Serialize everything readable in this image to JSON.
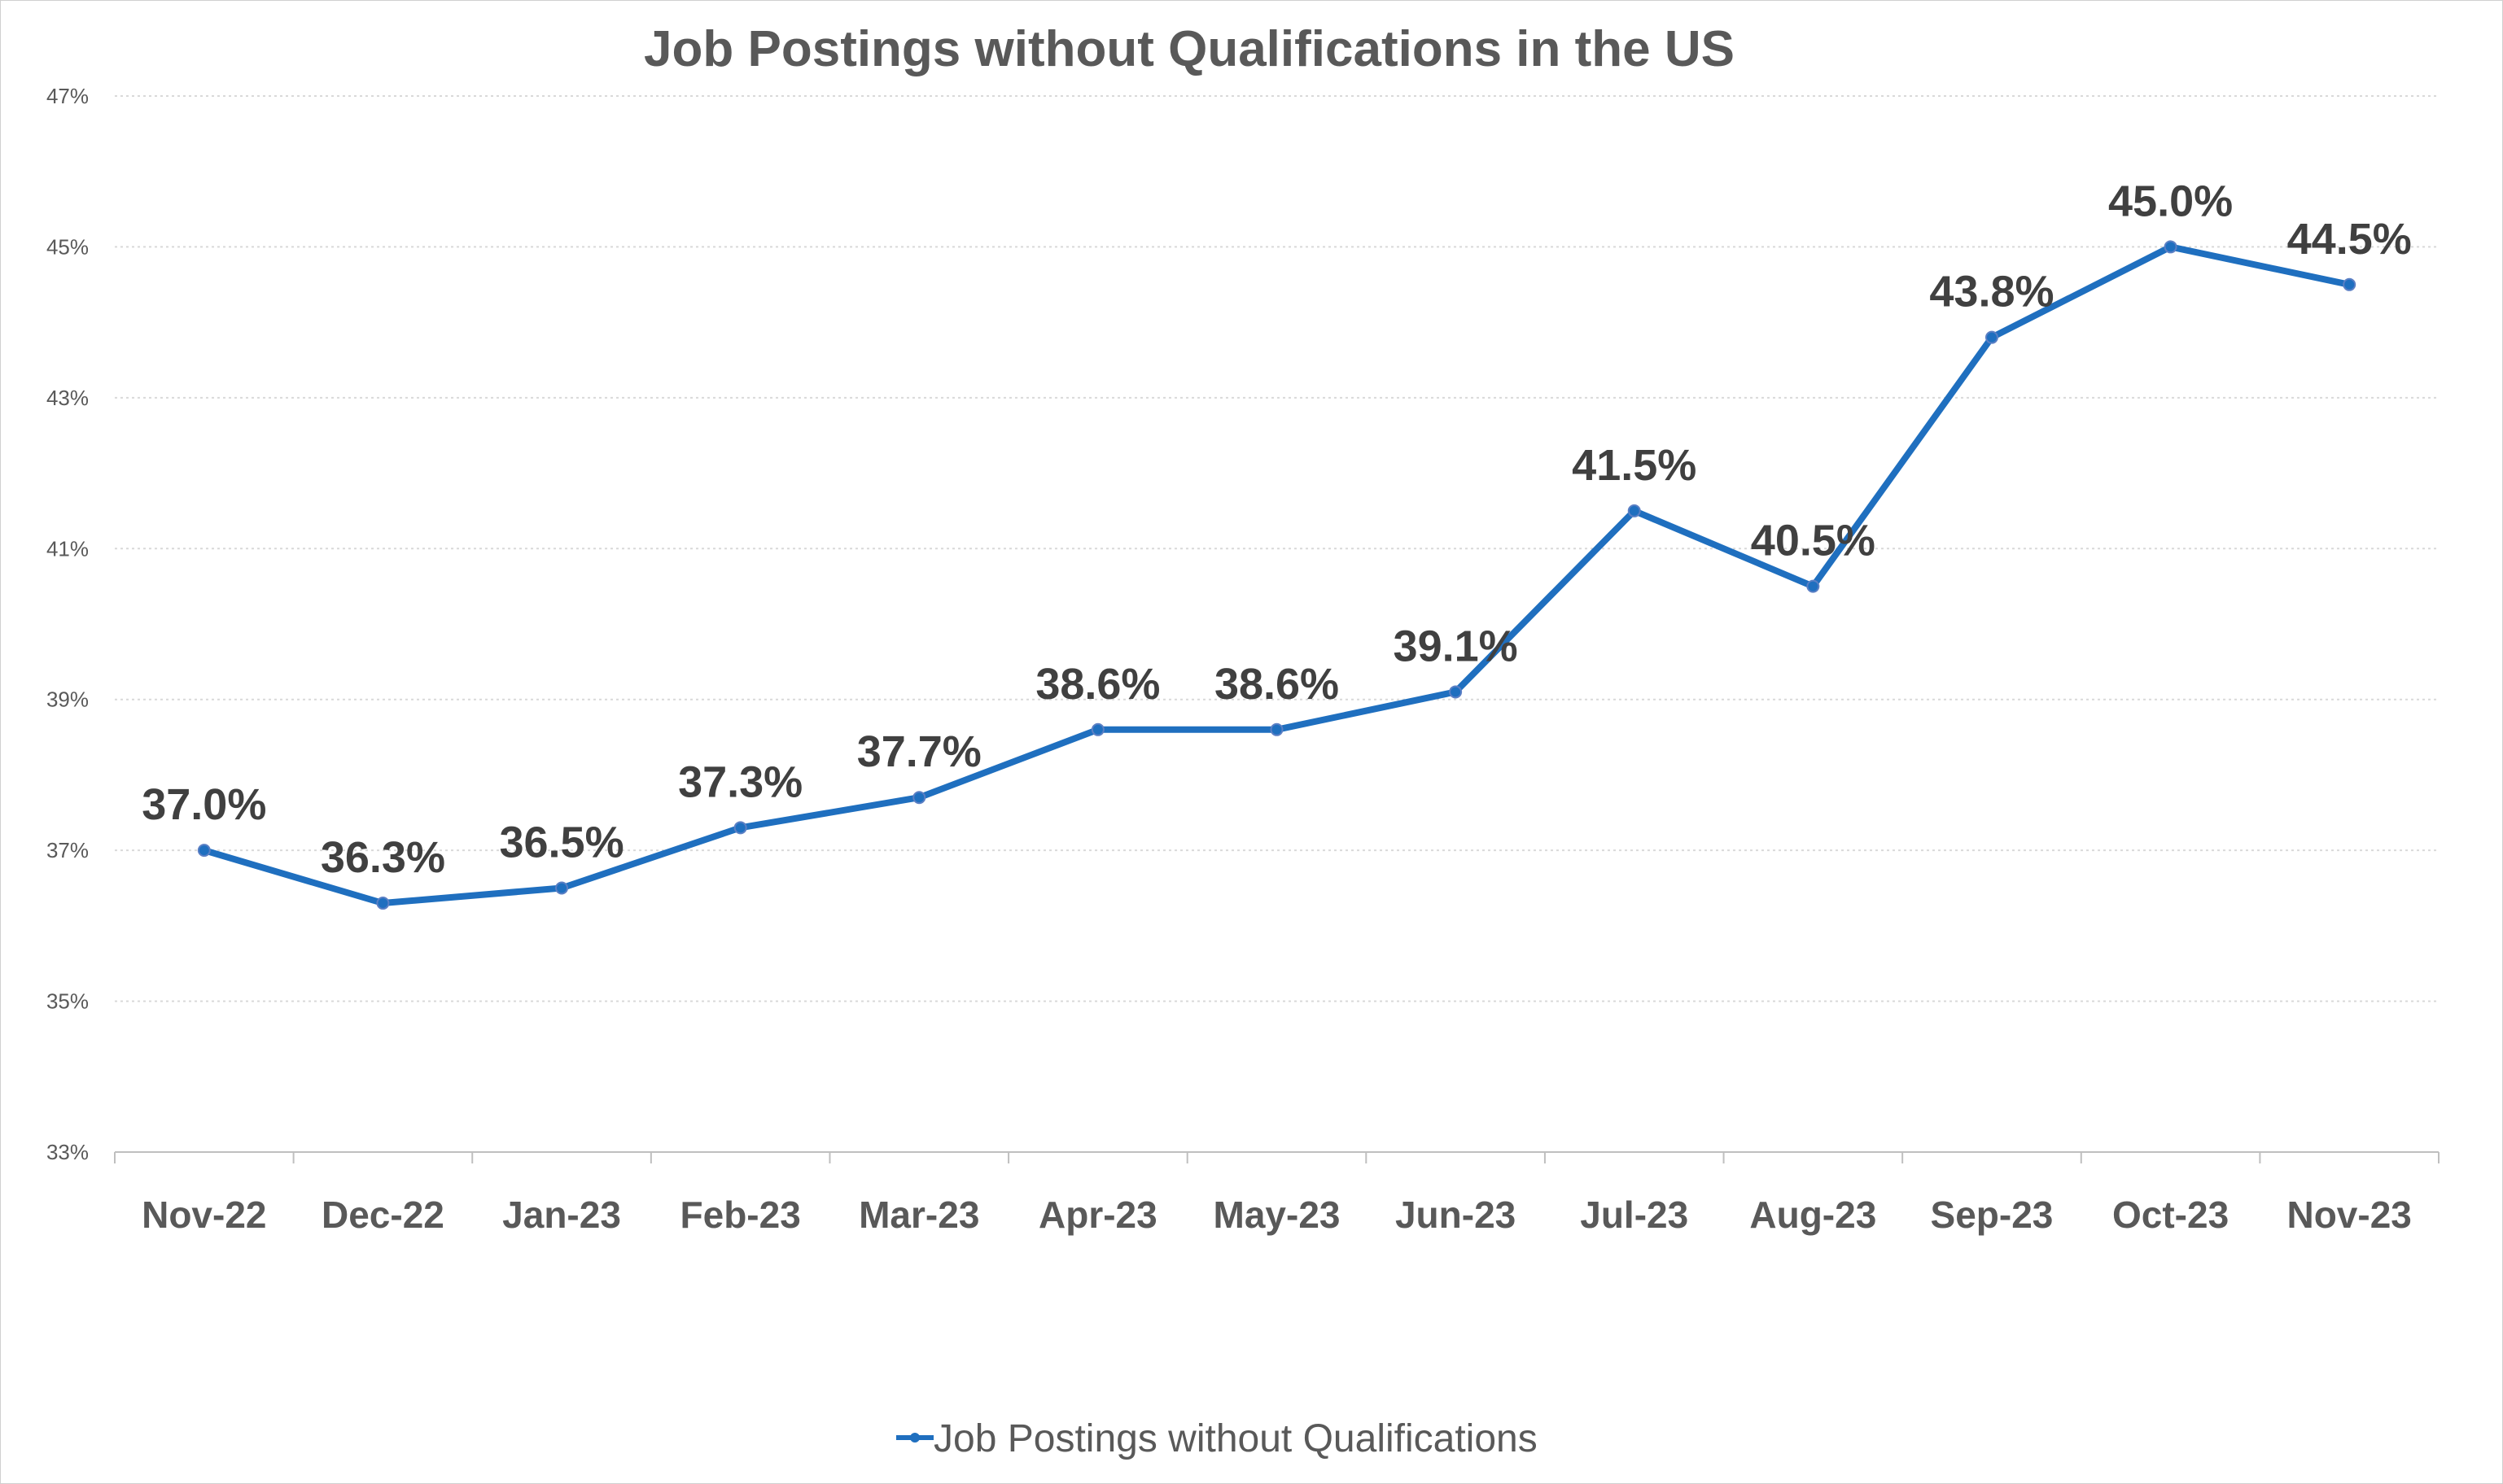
{
  "chart_data": {
    "type": "line",
    "title": "Job Postings without Qualifications in the US",
    "categories": [
      "Nov-22",
      "Dec-22",
      "Jan-23",
      "Feb-23",
      "Mar-23",
      "Apr-23",
      "May-23",
      "Jun-23",
      "Jul-23",
      "Aug-23",
      "Sep-23",
      "Oct-23",
      "Nov-23"
    ],
    "series": [
      {
        "name": "Job Postings without Qualifications",
        "values": [
          37.0,
          36.3,
          36.5,
          37.3,
          37.7,
          38.6,
          38.6,
          39.1,
          41.5,
          40.5,
          43.8,
          45.0,
          44.5
        ],
        "labels": [
          "37.0%",
          "36.3%",
          "36.5%",
          "37.3%",
          "37.7%",
          "38.6%",
          "38.6%",
          "39.1%",
          "41.5%",
          "40.5%",
          "43.8%",
          "45.0%",
          "44.5%"
        ],
        "color": "#1f6fbf"
      }
    ],
    "yticks": [
      33,
      35,
      37,
      39,
      41,
      43,
      45,
      47
    ],
    "ytick_labels": [
      "33%",
      "35%",
      "37%",
      "39%",
      "41%",
      "43%",
      "45%",
      "47%"
    ],
    "ylim": [
      33,
      47
    ],
    "xlabel": "",
    "ylabel": "",
    "grid": true,
    "legend": "bottom"
  }
}
